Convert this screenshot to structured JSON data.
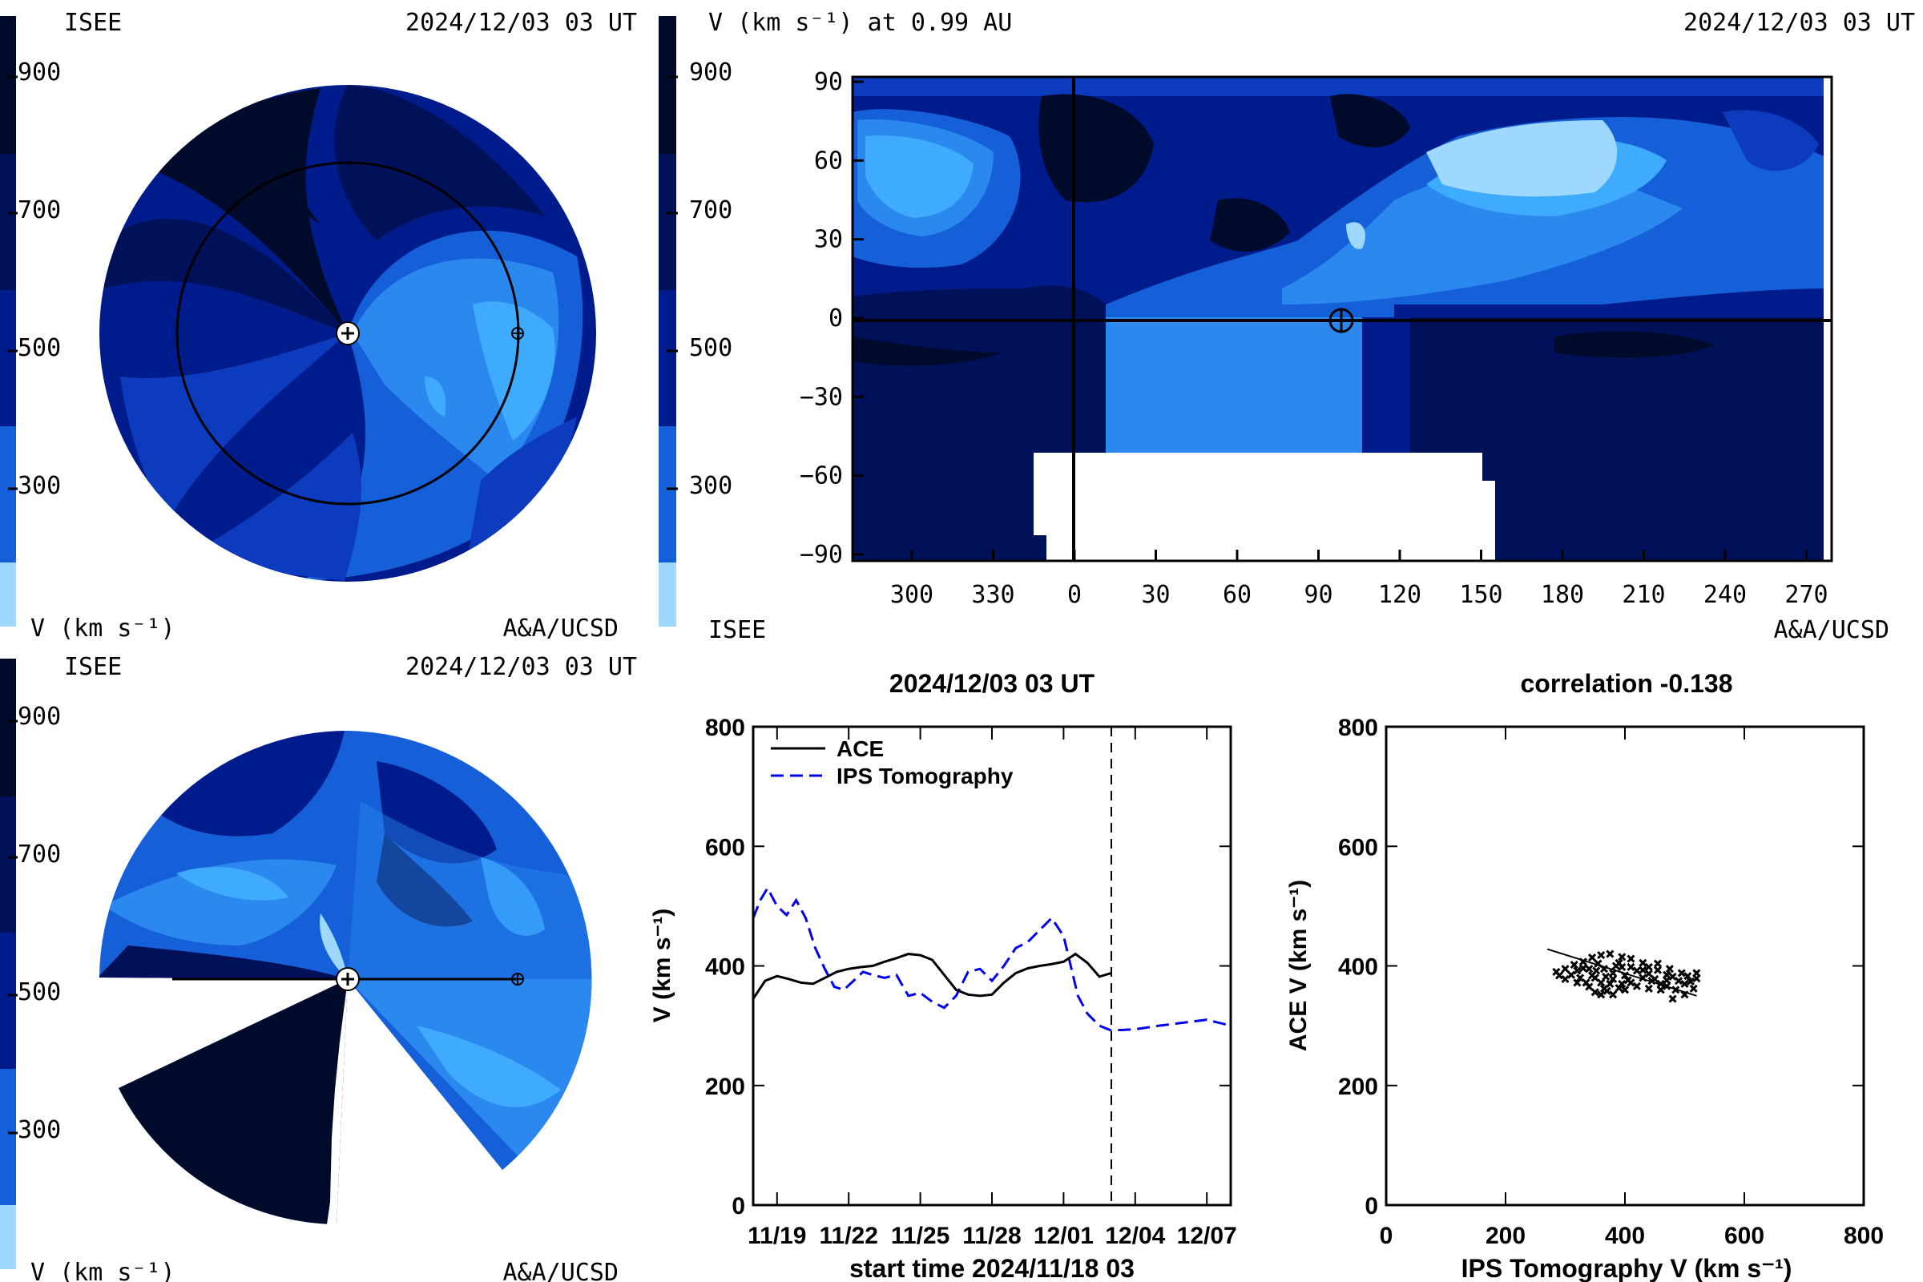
{
  "colorscale": {
    "ticks": [
      "900",
      "700",
      "500",
      "300"
    ],
    "unit_label": "V (km s⁻¹)",
    "colors": [
      "#000a2a",
      "#00115a",
      "#001c8c",
      "#0d3bbd",
      "#1560d9",
      "#2a88ef",
      "#3eabff",
      "#9ed8ff"
    ]
  },
  "panel_tl": {
    "org": "ISEE",
    "time": "2024/12/03 03 UT",
    "unit": "V (km s⁻¹)",
    "credit": "A&A/UCSD"
  },
  "panel_bl": {
    "org": "ISEE",
    "time": "2024/12/03 03 UT",
    "unit": "V (km s⁻¹)",
    "credit": "A&A/UCSD"
  },
  "panel_tr": {
    "title_left": "V (km s⁻¹) at 0.99 AU",
    "title_right": "2024/12/03 03 UT",
    "org": "ISEE",
    "credit": "A&A/UCSD",
    "yticks": [
      "90",
      "60",
      "30",
      "0",
      "−30",
      "−60",
      "−90"
    ],
    "xticks": [
      "300",
      "330",
      "0",
      "30",
      "60",
      "90",
      "120",
      "150",
      "180",
      "210",
      "240",
      "270"
    ]
  },
  "chart_data": [
    {
      "type": "line",
      "title": "2024/12/03 03 UT",
      "xlabel": "start time 2024/11/18 03",
      "ylabel": "V (km s⁻¹)",
      "ylim": [
        0,
        800
      ],
      "xlim_days": [
        0,
        20
      ],
      "xticklabels": [
        "11/19",
        "11/22",
        "11/25",
        "11/28",
        "12/01",
        "12/04",
        "12/07"
      ],
      "yticklabels": [
        "0",
        "200",
        "400",
        "600",
        "800"
      ],
      "current_time_day": 15,
      "legend_position": "top-left",
      "series": [
        {
          "name": "ACE",
          "style": "solid",
          "color": "#000000",
          "x": [
            0,
            0.5,
            1,
            1.5,
            2,
            2.5,
            3,
            3.5,
            4,
            4.5,
            5,
            5.5,
            6,
            6.5,
            7,
            7.5,
            8,
            8.5,
            9,
            9.5,
            10,
            10.5,
            11,
            11.5,
            12,
            12.5,
            13,
            13.5,
            14,
            14.5,
            15
          ],
          "values": [
            345,
            375,
            383,
            378,
            372,
            370,
            380,
            390,
            395,
            398,
            400,
            407,
            413,
            420,
            418,
            410,
            385,
            360,
            352,
            350,
            352,
            372,
            388,
            396,
            400,
            403,
            407,
            420,
            405,
            382,
            388
          ]
        },
        {
          "name": "IPS Tomography",
          "style": "dashed",
          "color": "#0000ee",
          "x": [
            0,
            0.3,
            0.6,
            1,
            1.4,
            1.8,
            2.2,
            2.6,
            3,
            3.4,
            3.8,
            4.2,
            4.6,
            5,
            5.5,
            6,
            6.5,
            7,
            7.5,
            8,
            8.5,
            9,
            9.5,
            10,
            10.5,
            11,
            11.5,
            12,
            12.5,
            13,
            13.3,
            13.6,
            14,
            14.5,
            15,
            16,
            17,
            18,
            19,
            20
          ],
          "values": [
            480,
            510,
            530,
            500,
            485,
            510,
            480,
            430,
            395,
            365,
            360,
            375,
            390,
            385,
            380,
            385,
            350,
            355,
            340,
            330,
            350,
            390,
            395,
            375,
            400,
            430,
            440,
            460,
            480,
            450,
            400,
            350,
            320,
            300,
            292,
            294,
            300,
            305,
            310,
            300
          ]
        }
      ]
    },
    {
      "type": "scatter",
      "title": "correlation -0.138",
      "xlabel": "IPS Tomography V (km s⁻¹)",
      "ylabel": "ACE V (km s⁻¹)",
      "xlim": [
        0,
        800
      ],
      "ylim": [
        0,
        800
      ],
      "xticklabels": [
        "0",
        "200",
        "400",
        "600",
        "800"
      ],
      "yticklabels": [
        "0",
        "200",
        "400",
        "600",
        "800"
      ],
      "points": [
        [
          300,
          378
        ],
        [
          310,
          385
        ],
        [
          320,
          392
        ],
        [
          330,
          396
        ],
        [
          340,
          395
        ],
        [
          350,
          380
        ],
        [
          360,
          372
        ],
        [
          365,
          362
        ],
        [
          370,
          358
        ],
        [
          375,
          370
        ],
        [
          380,
          388
        ],
        [
          385,
          400
        ],
        [
          390,
          405
        ],
        [
          395,
          398
        ],
        [
          400,
          384
        ],
        [
          405,
          376
        ],
        [
          410,
          372
        ],
        [
          420,
          366
        ],
        [
          430,
          380
        ],
        [
          440,
          387
        ],
        [
          450,
          378
        ],
        [
          460,
          370
        ],
        [
          470,
          366
        ],
        [
          480,
          382
        ],
        [
          490,
          375
        ],
        [
          500,
          370
        ],
        [
          510,
          374
        ],
        [
          520,
          379
        ],
        [
          340,
          365
        ],
        [
          350,
          356
        ],
        [
          360,
          352
        ],
        [
          380,
          352
        ],
        [
          400,
          360
        ],
        [
          420,
          392
        ],
        [
          440,
          398
        ],
        [
          455,
          393
        ],
        [
          470,
          385
        ],
        [
          330,
          407
        ],
        [
          345,
          414
        ],
        [
          360,
          418
        ],
        [
          375,
          420
        ],
        [
          395,
          415
        ],
        [
          410,
          412
        ],
        [
          430,
          405
        ],
        [
          455,
          404
        ],
        [
          475,
          395
        ],
        [
          495,
          388
        ],
        [
          505,
          383
        ],
        [
          290,
          384
        ],
        [
          285,
          390
        ],
        [
          315,
          402
        ],
        [
          320,
          372
        ],
        [
          335,
          372
        ],
        [
          345,
          384
        ],
        [
          365,
          395
        ],
        [
          380,
          378
        ],
        [
          395,
          370
        ],
        [
          440,
          362
        ],
        [
          460,
          360
        ],
        [
          485,
          360
        ],
        [
          515,
          362
        ],
        [
          500,
          352
        ],
        [
          480,
          345
        ],
        [
          300,
          395
        ],
        [
          325,
          380
        ],
        [
          355,
          404
        ],
        [
          410,
          398
        ],
        [
          430,
          393
        ],
        [
          520,
          388
        ],
        [
          445,
          375
        ],
        [
          470,
          376
        ],
        [
          390,
          363
        ],
        [
          368,
          382
        ],
        [
          352,
          392
        ]
      ],
      "fit_line": [
        [
          270,
          428
        ],
        [
          520,
          350
        ]
      ]
    }
  ]
}
